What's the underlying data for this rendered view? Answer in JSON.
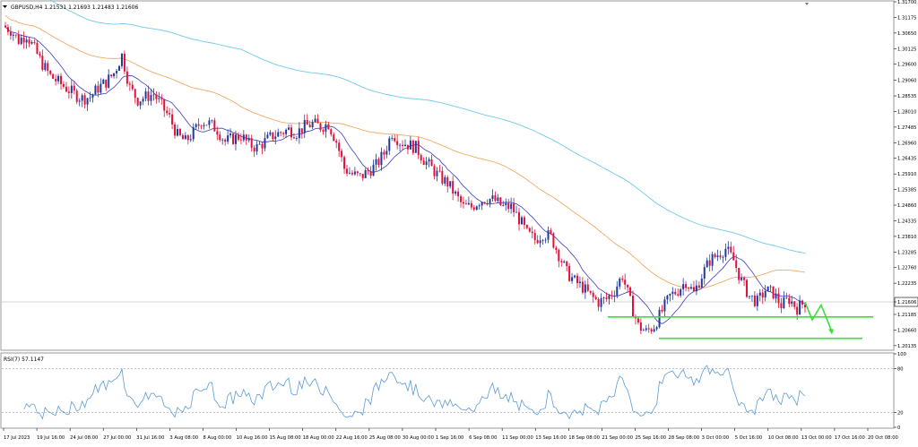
{
  "header": {
    "symbol_line": "GBPUSD,H4  1.21531 1.21693 1.21483 1.21606"
  },
  "rsi_label": "RSI(7) 57.1147",
  "price_axis": [
    "1.31700",
    "1.31175",
    "1.30650",
    "1.30125",
    "1.29600",
    "1.29060",
    "1.28535",
    "1.28010",
    "1.27485",
    "1.26960",
    "1.26435",
    "1.25910",
    "1.25385",
    "1.24860",
    "1.24335",
    "1.23810",
    "1.23285",
    "1.22760",
    "1.22235",
    "1.21606",
    "1.21185",
    "1.20660",
    "1.20135"
  ],
  "current_price": "1.21606",
  "rsi_axis": [
    "100",
    "80",
    "20",
    "0"
  ],
  "time_axis": [
    "17 Jul 2023",
    "19 Jul 16:00",
    "24 Jul 08:00",
    "27 Jul 00:00",
    "31 Jul 16:00",
    "3 Aug 08:00",
    "8 Aug 00:00",
    "10 Aug 16:00",
    "15 Aug 08:00",
    "18 Aug 00:00",
    "22 Aug 16:00",
    "25 Aug 08:00",
    "30 Aug 00:00",
    "1 Sep 16:00",
    "6 Sep 08:00",
    "11 Sep 00:00",
    "13 Sep 16:00",
    "18 Sep 08:00",
    "21 Sep 00:00",
    "25 Sep 16:00",
    "28 Sep 08:00",
    "3 Oct 00:00",
    "5 Oct 16:00",
    "10 Oct 08:00",
    "13 Oct 00:00",
    "17 Oct 16:00",
    "20 Oct 08:00"
  ],
  "colors": {
    "bull": "#1f3a9e",
    "bear": "#e0103a",
    "ma_fast": "#3a3ac8",
    "ma_mid": "#f0a050",
    "ma_slow": "#6fc8ec",
    "rsi": "#5b9bd5",
    "support": "#3adf3a",
    "grid": "#c8c8c8"
  },
  "chart_data": {
    "type": "candlestick",
    "timeframe": "H4",
    "symbol": "GBPUSD",
    "ylim": [
      1.2001,
      1.317
    ],
    "ohlc_close_path": [
      1.309,
      1.3075,
      1.304,
      1.306,
      1.301,
      1.296,
      1.292,
      1.29,
      1.288,
      1.286,
      1.2845,
      1.285,
      1.288,
      1.29,
      1.293,
      1.299,
      1.288,
      1.284,
      1.285,
      1.286,
      1.282,
      1.278,
      1.272,
      1.27,
      1.273,
      1.277,
      1.276,
      1.274,
      1.27,
      1.271,
      1.272,
      1.269,
      1.268,
      1.27,
      1.272,
      1.273,
      1.274,
      1.273,
      1.275,
      1.276,
      1.275,
      1.276,
      1.27,
      1.261,
      1.259,
      1.258,
      1.26,
      1.262,
      1.266,
      1.273,
      1.27,
      1.269,
      1.268,
      1.264,
      1.261,
      1.258,
      1.256,
      1.252,
      1.248,
      1.248,
      1.25,
      1.251,
      1.25,
      1.248,
      1.248,
      1.244,
      1.239,
      1.237,
      1.239,
      1.238,
      1.232,
      1.226,
      1.223,
      1.221,
      1.218,
      1.216,
      1.217,
      1.22,
      1.225,
      1.216,
      1.208,
      1.206,
      1.208,
      1.213,
      1.218,
      1.22,
      1.223,
      1.219,
      1.225,
      1.23,
      1.232,
      1.234,
      1.23,
      1.223,
      1.218,
      1.216,
      1.22,
      1.219,
      1.215,
      1.217,
      1.214,
      1.216
    ],
    "moving_averages": [
      {
        "name": "",
        "color": "#3a3ac8"
      },
      {
        "name": "",
        "color": "#f0a050"
      },
      {
        "name": "",
        "color": "#6fc8ec"
      }
    ],
    "support_levels": [
      1.211,
      1.205
    ],
    "projection": [
      1.216,
      1.21,
      1.215,
      1.206
    ],
    "rsi_period": 7,
    "rsi_last": 57.1147,
    "rsi_levels": [
      80,
      20
    ]
  }
}
